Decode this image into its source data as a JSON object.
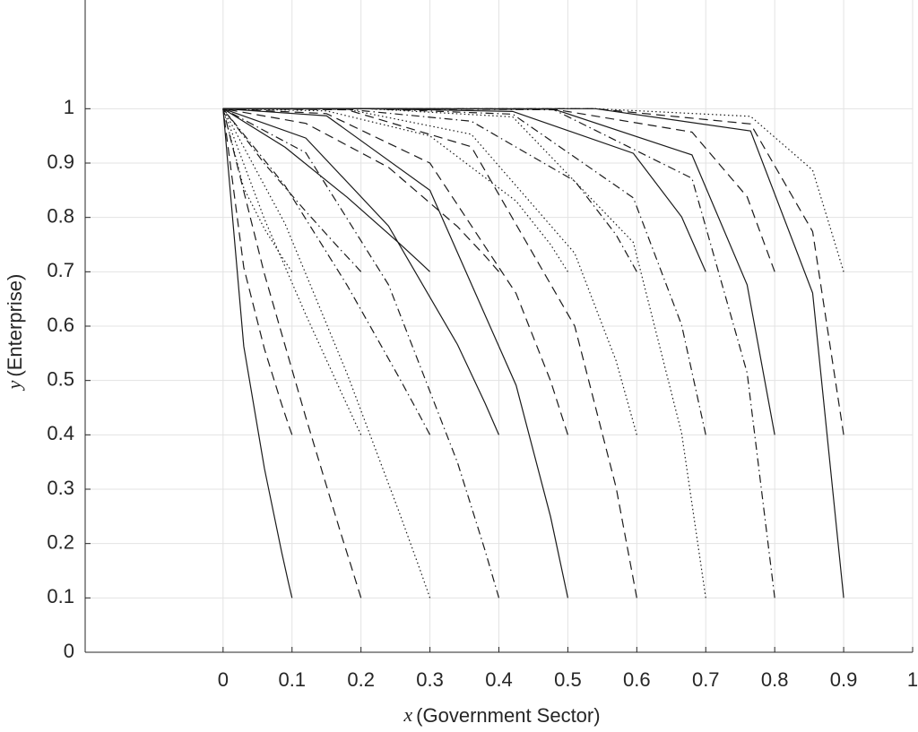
{
  "chart_data": {
    "type": "line",
    "xlabel_var": "x",
    "xlabel": "(Government Sector)",
    "ylabel_var": "y",
    "ylabel": "(Enterprise)",
    "xlim": [
      -0.2,
      1
    ],
    "ylim": [
      0,
      1.2
    ],
    "xticks": [
      0,
      0.1,
      0.2,
      0.3,
      0.4,
      0.5,
      0.6,
      0.7,
      0.8,
      0.9,
      1
    ],
    "yticks": [
      0,
      0.1,
      0.2,
      0.3,
      0.4,
      0.5,
      0.6,
      0.7,
      0.8,
      0.9,
      1
    ],
    "grid": true,
    "color": "#1a1a1a",
    "line_styles": [
      "solid",
      "dashed",
      "dotted",
      "dashdot"
    ],
    "series": [
      {
        "x": [
          0.1,
          0.095,
          0.085,
          0.06,
          0.03,
          0
        ],
        "values": [
          0.1,
          0.127,
          0.184,
          0.338,
          0.563,
          1
        ]
      },
      {
        "x": [
          0.2,
          0.19,
          0.17,
          0.12,
          0.06,
          0
        ],
        "values": [
          0.1,
          0.141,
          0.222,
          0.432,
          0.696,
          1
        ]
      },
      {
        "x": [
          0.3,
          0.285,
          0.255,
          0.18,
          0.09,
          0
        ],
        "values": [
          0.1,
          0.154,
          0.259,
          0.512,
          0.788,
          1
        ]
      },
      {
        "x": [
          0.4,
          0.38,
          0.34,
          0.24,
          0.12,
          0
        ],
        "values": [
          0.1,
          0.187,
          0.349,
          0.676,
          0.919,
          1
        ]
      },
      {
        "x": [
          0.5,
          0.475,
          0.425,
          0.3,
          0.15,
          0
        ],
        "values": [
          0.1,
          0.249,
          0.491,
          0.85,
          0.987,
          1
        ]
      },
      {
        "x": [
          0.6,
          0.57,
          0.51,
          0.36,
          0.18,
          0
        ],
        "values": [
          0.1,
          0.303,
          0.6,
          0.93,
          0.998,
          1
        ]
      },
      {
        "x": [
          0.7,
          0.665,
          0.595,
          0.42,
          0.21,
          0
        ],
        "values": [
          0.1,
          0.403,
          0.754,
          0.985,
          1,
          1
        ]
      },
      {
        "x": [
          0.8,
          0.76,
          0.68,
          0.48,
          0.24,
          0
        ],
        "values": [
          0.1,
          0.514,
          0.872,
          0.998,
          1,
          1
        ]
      },
      {
        "x": [
          0.9,
          0.855,
          0.765,
          0.54,
          0.27,
          0
        ],
        "values": [
          0.1,
          0.661,
          0.959,
          1,
          1,
          1
        ]
      },
      {
        "x": [
          0.1,
          0.095,
          0.085,
          0.06,
          0.03,
          0
        ],
        "values": [
          0.4,
          0.418,
          0.456,
          0.558,
          0.708,
          1
        ]
      },
      {
        "x": [
          0.2,
          0.19,
          0.17,
          0.12,
          0.06,
          0
        ],
        "values": [
          0.4,
          0.427,
          0.482,
          0.621,
          0.797,
          1
        ]
      },
      {
        "x": [
          0.3,
          0.285,
          0.255,
          0.18,
          0.09,
          0
        ],
        "values": [
          0.4,
          0.436,
          0.506,
          0.675,
          0.858,
          1
        ]
      },
      {
        "x": [
          0.4,
          0.38,
          0.34,
          0.24,
          0.12,
          0
        ],
        "values": [
          0.4,
          0.458,
          0.566,
          0.784,
          0.946,
          1
        ]
      },
      {
        "x": [
          0.5,
          0.475,
          0.425,
          0.3,
          0.15,
          0
        ],
        "values": [
          0.4,
          0.499,
          0.66,
          0.9,
          0.991,
          1
        ]
      },
      {
        "x": [
          0.6,
          0.57,
          0.51,
          0.36,
          0.18,
          0
        ],
        "values": [
          0.4,
          0.536,
          0.734,
          0.953,
          0.999,
          1
        ]
      },
      {
        "x": [
          0.7,
          0.665,
          0.595,
          0.42,
          0.21,
          0
        ],
        "values": [
          0.4,
          0.602,
          0.836,
          0.99,
          1,
          1
        ]
      },
      {
        "x": [
          0.8,
          0.76,
          0.68,
          0.48,
          0.24,
          0
        ],
        "values": [
          0.4,
          0.676,
          0.915,
          0.999,
          1,
          1
        ]
      },
      {
        "x": [
          0.9,
          0.855,
          0.765,
          0.54,
          0.27,
          0
        ],
        "values": [
          0.4,
          0.774,
          0.972,
          1,
          1,
          1
        ]
      },
      {
        "x": [
          0.1,
          0.095,
          0.085,
          0.06,
          0.03,
          0
        ],
        "values": [
          0.7,
          0.709,
          0.728,
          0.779,
          0.854,
          1
        ]
      },
      {
        "x": [
          0.2,
          0.19,
          0.17,
          0.12,
          0.06,
          0
        ],
        "values": [
          0.7,
          0.714,
          0.741,
          0.811,
          0.899,
          1
        ]
      },
      {
        "x": [
          0.3,
          0.285,
          0.255,
          0.18,
          0.09,
          0
        ],
        "values": [
          0.7,
          0.718,
          0.753,
          0.837,
          0.929,
          1
        ]
      },
      {
        "x": [
          0.4,
          0.38,
          0.34,
          0.24,
          0.12,
          0
        ],
        "values": [
          0.7,
          0.729,
          0.783,
          0.892,
          0.973,
          1
        ]
      },
      {
        "x": [
          0.5,
          0.475,
          0.425,
          0.3,
          0.15,
          0
        ],
        "values": [
          0.7,
          0.75,
          0.83,
          0.95,
          0.996,
          1
        ]
      },
      {
        "x": [
          0.6,
          0.57,
          0.51,
          0.36,
          0.18,
          0
        ],
        "values": [
          0.7,
          0.768,
          0.867,
          0.977,
          0.999,
          1
        ]
      },
      {
        "x": [
          0.7,
          0.665,
          0.595,
          0.42,
          0.21,
          0
        ],
        "values": [
          0.7,
          0.801,
          0.918,
          0.995,
          1,
          1
        ]
      },
      {
        "x": [
          0.8,
          0.76,
          0.68,
          0.48,
          0.24,
          0
        ],
        "values": [
          0.7,
          0.838,
          0.957,
          0.999,
          1,
          1
        ]
      },
      {
        "x": [
          0.9,
          0.855,
          0.765,
          0.54,
          0.27,
          0
        ],
        "values": [
          0.7,
          0.887,
          0.986,
          1,
          1,
          1
        ]
      }
    ]
  }
}
